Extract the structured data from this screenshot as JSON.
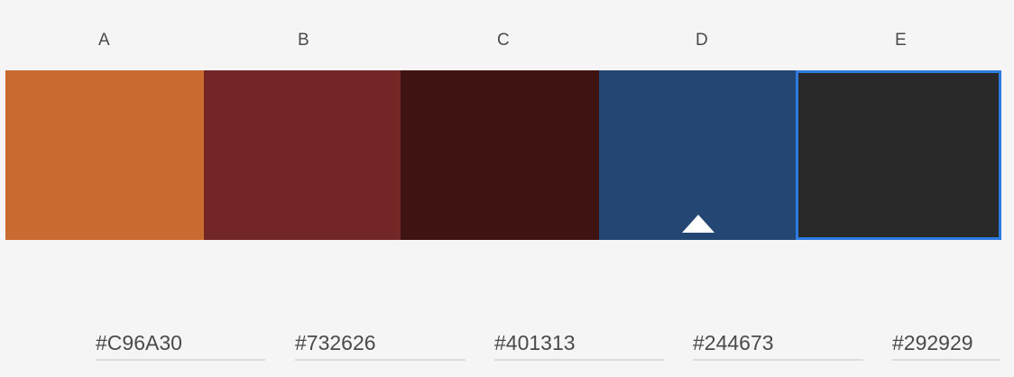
{
  "swatches": [
    {
      "label": "A",
      "hex": "#C96A30",
      "color": "#c96a30",
      "selected": false,
      "base": false
    },
    {
      "label": "B",
      "hex": "#732626",
      "color": "#732626",
      "selected": false,
      "base": false
    },
    {
      "label": "C",
      "hex": "#401313",
      "color": "#401313",
      "selected": false,
      "base": false
    },
    {
      "label": "D",
      "hex": "#244673",
      "color": "#244673",
      "selected": false,
      "base": true
    },
    {
      "label": "E",
      "hex": "#292929",
      "color": "#292929",
      "selected": true,
      "base": false
    }
  ],
  "colors": {
    "selection_border": "#2d7ae0",
    "background": "#f5f5f5"
  },
  "icons": {
    "base_marker": "triangle-up-icon"
  }
}
